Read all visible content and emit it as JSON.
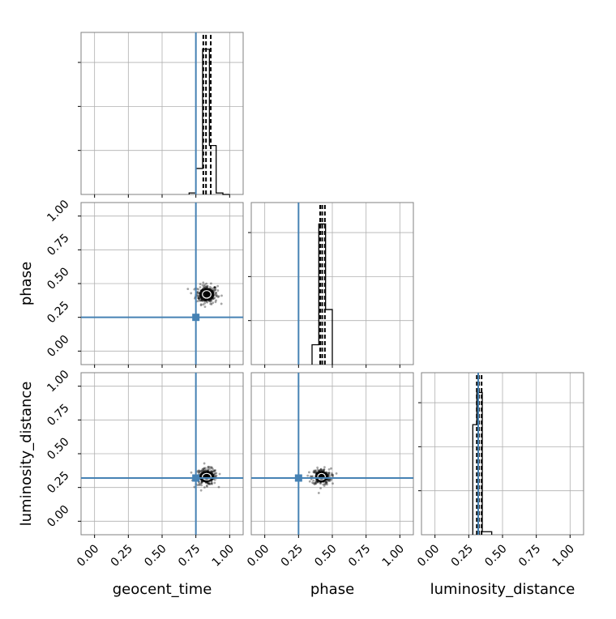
{
  "figure": {
    "type": "corner",
    "parameters": [
      "geocent_time",
      "phase",
      "luminosity_distance"
    ],
    "colors": {
      "truth": "#4682b4",
      "hist": "#000000",
      "grid": "#b0b0b0",
      "axes": "#808080"
    }
  },
  "chart_data": [
    {
      "type": "bar",
      "panel": "hist-geocent_time",
      "xlabel": "geocent_time",
      "xlim": [
        -0.1,
        1.1
      ],
      "xticks": [
        "0.00",
        "0.25",
        "0.50",
        "0.75",
        "1.00"
      ],
      "bin_edges": [
        0.7,
        0.75,
        0.8,
        0.85,
        0.9,
        0.95,
        1.0
      ],
      "values": [
        0.01,
        0.17,
        0.95,
        0.32,
        0.01,
        0.0
      ],
      "ylim": [
        0,
        1.0
      ],
      "quantiles": [
        0.805,
        0.825,
        0.86
      ],
      "truth": 0.75,
      "grid": true
    },
    {
      "type": "scatter",
      "panel": "geocent_time-vs-phase",
      "xlabel": "",
      "ylabel": "phase",
      "xlim": [
        -0.1,
        1.1
      ],
      "ylim": [
        -0.1,
        1.1
      ],
      "yticks": [
        "0.00",
        "0.25",
        "0.50",
        "0.75",
        "1.00"
      ],
      "center": [
        0.83,
        0.42
      ],
      "spread": [
        0.04,
        0.035
      ],
      "truth": [
        0.75,
        0.25
      ],
      "grid": true
    },
    {
      "type": "bar",
      "panel": "hist-phase",
      "xlim": [
        -0.1,
        1.1
      ],
      "bin_edges": [
        0.35,
        0.4,
        0.45,
        0.5
      ],
      "values": [
        0.13,
        0.92,
        0.36
      ],
      "ylim": [
        0,
        1.0
      ],
      "quantiles": [
        0.41,
        0.425,
        0.445
      ],
      "truth": 0.25,
      "grid": true
    },
    {
      "type": "scatter",
      "panel": "geocent_time-vs-luminosity_distance",
      "xlabel": "geocent_time",
      "ylabel": "luminosity_distance",
      "xlim": [
        -0.1,
        1.1
      ],
      "ylim": [
        -0.1,
        1.1
      ],
      "xticks": [
        "0.00",
        "0.25",
        "0.50",
        "0.75",
        "1.00"
      ],
      "yticks": [
        "0.00",
        "0.25",
        "0.50",
        "0.75",
        "1.00"
      ],
      "center": [
        0.83,
        0.33
      ],
      "spread": [
        0.04,
        0.03
      ],
      "truth": [
        0.75,
        0.32
      ],
      "grid": true
    },
    {
      "type": "scatter",
      "panel": "phase-vs-luminosity_distance",
      "xlabel": "phase",
      "xlim": [
        -0.1,
        1.1
      ],
      "ylim": [
        -0.1,
        1.1
      ],
      "xticks": [
        "0.00",
        "0.25",
        "0.50",
        "0.75",
        "1.00"
      ],
      "center": [
        0.42,
        0.33
      ],
      "spread": [
        0.035,
        0.03
      ],
      "truth": [
        0.25,
        0.32
      ],
      "grid": true
    },
    {
      "type": "bar",
      "panel": "hist-luminosity_distance",
      "xlabel": "luminosity_distance",
      "xlim": [
        -0.1,
        1.1
      ],
      "xticks": [
        "0.00",
        "0.25",
        "0.50",
        "0.75",
        "1.00"
      ],
      "bin_edges": [
        0.28,
        0.31,
        0.35,
        0.42
      ],
      "values": [
        0.72,
        0.93,
        0.02
      ],
      "ylim": [
        0,
        1.0
      ],
      "quantiles": [
        0.31,
        0.325,
        0.345
      ],
      "truth": 0.32,
      "grid": true
    }
  ]
}
